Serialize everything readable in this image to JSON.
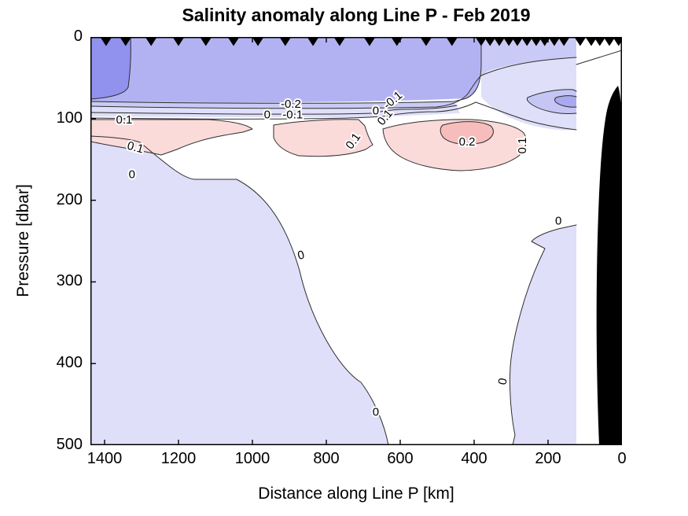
{
  "title": "Salinity anomaly along Line P - Feb 2019",
  "axes": {
    "x": {
      "label": "Distance along Line P [km]",
      "ticks": [
        1400,
        1200,
        1000,
        800,
        600,
        400,
        200,
        0
      ]
    },
    "y": {
      "label": "Pressure [dbar]",
      "ticks": [
        0,
        100,
        200,
        300,
        400,
        500
      ]
    }
  },
  "chart_data": {
    "type": "filled_contour",
    "title": "Salinity anomaly along Line P - Feb 2019",
    "xlabel": "Distance along Line P [km]",
    "ylabel": "Pressure [dbar]",
    "x_axis": {
      "ticks": [
        1400,
        1200,
        1000,
        800,
        600,
        400,
        200,
        0
      ],
      "range": [
        0,
        1438
      ],
      "direction": "reversed, 0 km (coast) at right"
    },
    "y_axis": {
      "ticks": [
        0,
        100,
        200,
        300,
        400,
        500
      ],
      "range": [
        0,
        500
      ],
      "direction": "pressure increases downward"
    },
    "contour_interval": 0.1,
    "labeled_levels": [
      -0.2,
      -0.1,
      0,
      0.1,
      0.2
    ],
    "fill_bands": [
      {
        "range": "-0.3 to -0.2 (strongest fresh anomaly)",
        "color": "#9191ee"
      },
      {
        "range": "-0.2 to -0.1",
        "color": "#b2b2f3"
      },
      {
        "range": "-0.1 to -0.05",
        "color": "#cacaf6"
      },
      {
        "range": "-0.05 to 0",
        "color": "#dfdffa"
      },
      {
        "range": "0 to 0.1",
        "color": "#ffffff"
      },
      {
        "range": "0.1 to 0.2",
        "color": "#fbdada"
      },
      {
        "range": "0.2 to 0.3 (strongest salty anomaly)",
        "color": "#f7bdbd"
      }
    ],
    "station_markers_km": [
      1396,
      1343,
      1274,
      1200,
      1126,
      1051,
      985,
      911,
      836,
      764,
      683,
      609,
      530,
      460,
      381,
      357,
      332,
      306,
      283,
      257,
      232,
      209,
      183,
      157,
      113,
      83,
      60,
      34,
      9
    ],
    "contour_labels": [
      {
        "value": "0.1",
        "km": 1347,
        "dbar": 102,
        "rot": 0
      },
      {
        "value": "-0.2",
        "km": 896,
        "dbar": 83,
        "rot": 0
      },
      {
        "value": "0",
        "km": 960,
        "dbar": 96,
        "rot": 0
      },
      {
        "value": "-0.1",
        "km": 891,
        "dbar": 96,
        "rot": 0
      },
      {
        "value": "0.1",
        "km": 1317,
        "dbar": 136,
        "rot": 15
      },
      {
        "value": "0",
        "km": 1326,
        "dbar": 169,
        "rot": 0
      },
      {
        "value": "-0.1",
        "km": 619,
        "dbar": 78,
        "rot": -40
      },
      {
        "value": "0",
        "km": 666,
        "dbar": 91,
        "rot": 0
      },
      {
        "value": "0.1",
        "km": 640,
        "dbar": 99,
        "rot": -50
      },
      {
        "value": "0.1",
        "km": 726,
        "dbar": 128,
        "rot": -55
      },
      {
        "value": "0.2",
        "km": 419,
        "dbar": 129,
        "rot": 0
      },
      {
        "value": "0.1",
        "km": 268,
        "dbar": 133,
        "rot": -90
      },
      {
        "value": "0",
        "km": 172,
        "dbar": 226,
        "rot": 0
      },
      {
        "value": "0",
        "km": 868,
        "dbar": 268,
        "rot": -15
      },
      {
        "value": "0",
        "km": 666,
        "dbar": 460,
        "rot": 0
      },
      {
        "value": "0",
        "km": 321,
        "dbar": 422,
        "rot": -80
      }
    ],
    "features": [
      "Fresh (negative, blue) anomaly layer occupying the upper ~120 dbar along the whole section, strongest (< -0.2) offshore of ~1050 km and in the top-left corner near 1400 km",
      "Sharp halocline with tightly packed contours (-0.2, -0.1, 0) near 80-100 dbar",
      "Salty (positive, pink) subsurface anomaly band at ~100-200 dbar with a > 0.2 core near 350-500 km",
      "Small subsurface fresh lens (< -0.1, < -0.2) near 150-250 km at ~80-120 dbar",
      "Weak negative anomaly (0 to -0.05) below ~170 dbar offshore and below ~230 dbar nearshore, separated by a near-zero tongue around 450-650 km",
      "Black bathymetry/seafloor wedge at the right (coastal) edge, within ~55 km of shore, shoaling to ~110 dbar"
    ]
  },
  "icons": {
    "station_marker": "filled downward-pointing triangle marking CTD station positions along the top axis"
  },
  "colors": {
    "background": "#ffffff",
    "contour_line": "#2e2e2e",
    "axis": "#000000",
    "bathymetry": "#000000",
    "strong_fresh": "#9191ee",
    "fresh": "#b2b2f3",
    "weak_fresh": "#cacaf6",
    "near_zero_fresh": "#dfdffa",
    "salty": "#fbdada",
    "strong_salty": "#f7bdbd"
  }
}
